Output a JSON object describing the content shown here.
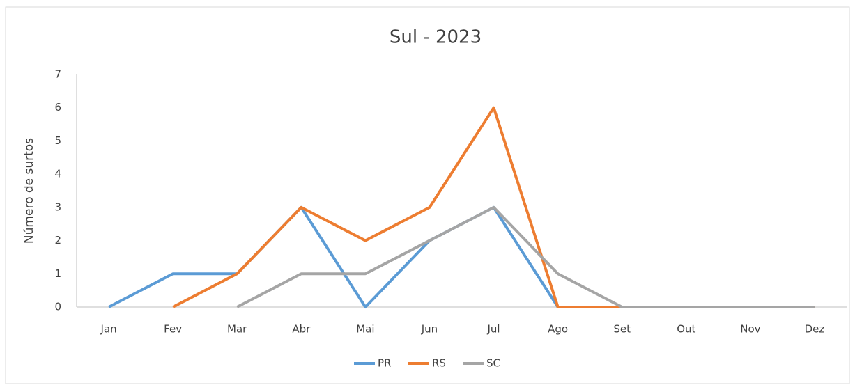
{
  "chart_data": {
    "type": "line",
    "title": "Sul - 2023",
    "y_label": "Número de surtos",
    "categories": [
      "Jan",
      "Fev",
      "Mar",
      "Abr",
      "Mai",
      "Jun",
      "Jul",
      "Ago",
      "Set",
      "Out",
      "Nov",
      "Dez"
    ],
    "series": [
      {
        "name": "PR",
        "color": "#5b9bd5",
        "values": [
          0,
          1,
          1,
          3,
          0,
          2,
          3,
          0,
          0,
          0,
          0,
          0
        ]
      },
      {
        "name": "RS",
        "color": "#ed7d31",
        "values": [
          null,
          0,
          1,
          3,
          2,
          3,
          6,
          0,
          0,
          0,
          0,
          0
        ]
      },
      {
        "name": "SC",
        "color": "#a5a5a5",
        "values": [
          null,
          null,
          0,
          1,
          1,
          2,
          3,
          1,
          0,
          0,
          0,
          0
        ]
      }
    ],
    "ylim": [
      0,
      7
    ],
    "yticks": [
      0,
      1,
      2,
      3,
      4,
      5,
      6,
      7
    ],
    "legend": "bottom"
  }
}
